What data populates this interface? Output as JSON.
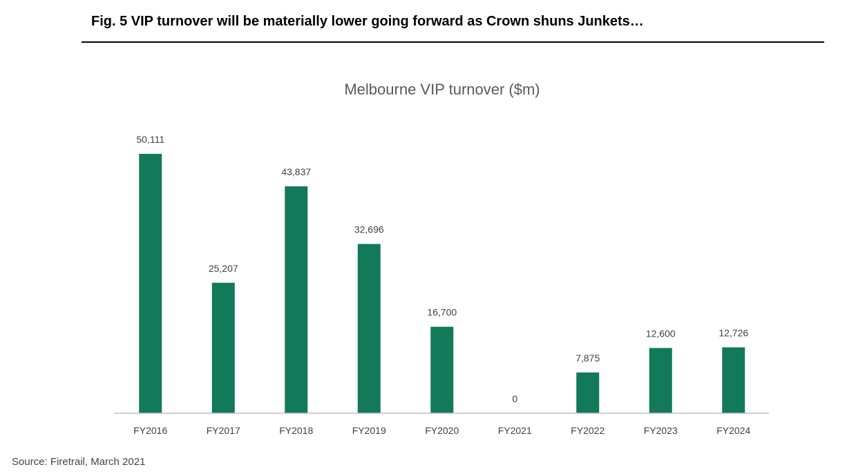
{
  "figure": {
    "title": "Fig. 5 VIP turnover will be materially lower going forward as Crown shuns Junkets…",
    "source": "Source: Firetrail, March 2021"
  },
  "colors": {
    "bar": "#127a58",
    "axis": "#bfbfbf",
    "text": "#404040",
    "title": "#595959"
  },
  "chart_data": {
    "type": "bar",
    "title": "Melbourne VIP turnover ($m)",
    "categories": [
      "FY2016",
      "FY2017",
      "FY2018",
      "FY2019",
      "FY2020",
      "FY2021",
      "FY2022",
      "FY2023",
      "FY2024"
    ],
    "values": [
      50111,
      25207,
      43837,
      32696,
      16700,
      0,
      7875,
      12600,
      12726
    ],
    "data_labels": [
      "50,111",
      "25,207",
      "43,837",
      "32,696",
      "16,700",
      "0",
      "7,875",
      "12,600",
      "12,726"
    ],
    "xlabel": "",
    "ylabel": "",
    "ylim": [
      0,
      50111
    ],
    "grid": false,
    "legend": "none"
  }
}
